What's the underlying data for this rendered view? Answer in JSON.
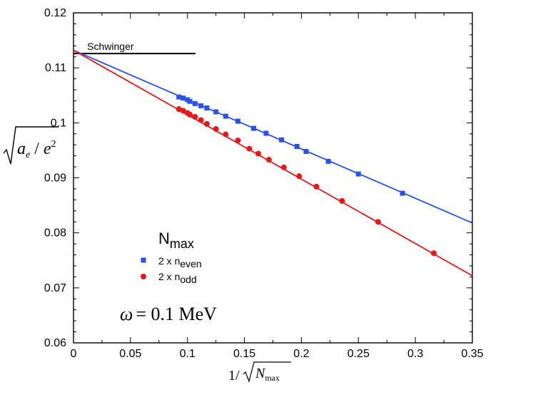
{
  "chart_data": {
    "type": "scatter",
    "title": "",
    "xlabel": "1/√N_max",
    "ylabel": "√(a_e / e²)",
    "xlim": [
      0,
      0.35
    ],
    "ylim": [
      0.06,
      0.12
    ],
    "x_ticks": [
      "0",
      "0.05",
      "0.1",
      "0.15",
      "0.2",
      "0.25",
      "0.3",
      "0.35"
    ],
    "y_ticks": [
      "0.06",
      "0.07",
      "0.08",
      "0.09",
      "0.1",
      "0.11",
      "0.12"
    ],
    "x_tick_values": [
      0,
      0.05,
      0.1,
      0.15,
      0.2,
      0.25,
      0.3,
      0.35
    ],
    "y_tick_values": [
      0.06,
      0.07,
      0.08,
      0.09,
      0.1,
      0.11,
      0.12
    ],
    "grid": false,
    "legend": {
      "title_main": "N",
      "title_sub": "max",
      "placement": "middle-left",
      "entries": [
        {
          "prefix": "2 x n",
          "sub": "even",
          "color": "#2a52e8",
          "marker": "square"
        },
        {
          "prefix": "2 x n",
          "sub": "odd",
          "color": "#e8171a",
          "marker": "circle"
        }
      ]
    },
    "annotations": {
      "schwinger_label": "Schwinger",
      "schwinger_value": 0.1126,
      "schwinger_x_range": [
        0,
        0.107
      ],
      "omega_symbol": "ω",
      "omega_equals": "= 0.1 MeV"
    },
    "series": [
      {
        "name": "2 x n_even",
        "color": "#2a52e8",
        "marker": "square",
        "fit_line": {
          "x": [
            0,
            0.35
          ],
          "y": [
            0.1132,
            0.0818
          ]
        },
        "x": [
          0.0925,
          0.0962,
          0.1,
          0.1021,
          0.1066,
          0.1118,
          0.117,
          0.125,
          0.1336,
          0.1443,
          0.1581,
          0.169,
          0.1826,
          0.1961,
          0.2041,
          0.2236,
          0.25,
          0.2887
        ],
        "y": [
          0.1047,
          0.1045,
          0.1042,
          0.1039,
          0.1035,
          0.1031,
          0.1027,
          0.102,
          0.1012,
          0.1003,
          0.099,
          0.0981,
          0.0969,
          0.0957,
          0.0948,
          0.093,
          0.0907,
          0.0872
        ]
      },
      {
        "name": "2 x n_odd",
        "color": "#e8171a",
        "marker": "circle",
        "fit_line": {
          "x": [
            0,
            0.35
          ],
          "y": [
            0.1132,
            0.0722
          ]
        },
        "x": [
          0.0925,
          0.0962,
          0.1,
          0.1021,
          0.1066,
          0.1118,
          0.117,
          0.125,
          0.1336,
          0.1443,
          0.1543,
          0.1622,
          0.1715,
          0.1846,
          0.198,
          0.2132,
          0.2357,
          0.2673,
          0.3162
        ],
        "y": [
          0.1025,
          0.1022,
          0.1018,
          0.1015,
          0.1011,
          0.1005,
          0.0998,
          0.0989,
          0.0979,
          0.0968,
          0.0953,
          0.0944,
          0.0933,
          0.0919,
          0.0903,
          0.0884,
          0.0858,
          0.082,
          0.0763
        ]
      }
    ]
  }
}
